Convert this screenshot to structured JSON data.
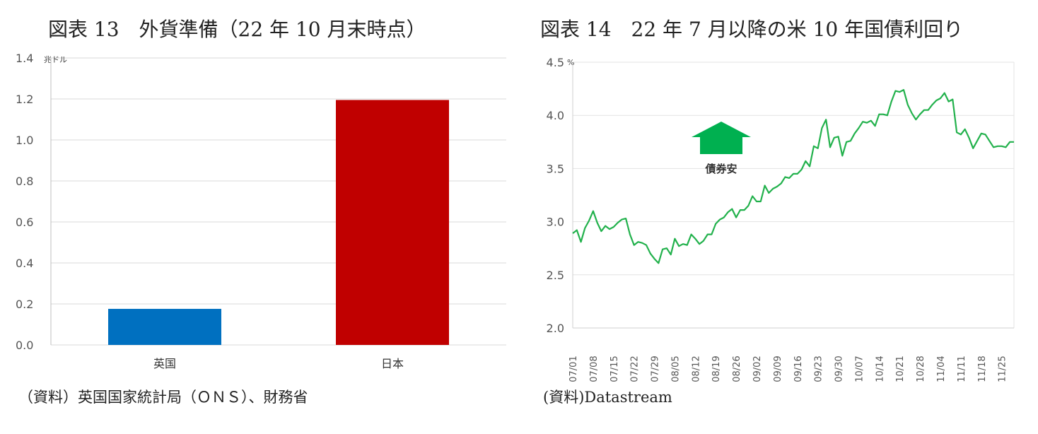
{
  "left": {
    "title": "図表 13　外貨準備（22 年 10 月末時点）",
    "source": "（資料）英国国家統計局（ＯＮＳ）、財務省"
  },
  "right": {
    "title": "図表 14　22 年 7 月以降の米 10 年国債利回り",
    "source": "(資料)Datastream"
  },
  "chart_data": [
    {
      "type": "bar",
      "title": "図表 13　外貨準備（22 年 10 月末時点）",
      "unit": "兆ドル",
      "categories": [
        "英国",
        "日本"
      ],
      "values": [
        0.176,
        1.195
      ],
      "colors": [
        "#0070c0",
        "#c00000"
      ],
      "ylim": [
        0,
        1.4
      ],
      "yticks": [
        "0.0",
        "0.2",
        "0.4",
        "0.6",
        "0.8",
        "1.0",
        "1.2",
        "1.4"
      ],
      "grid": true
    },
    {
      "type": "line",
      "title": "図表 14　22 年 7 月以降の米 10 年国債利回り",
      "unit": "%",
      "color": "#22b14c",
      "ylim": [
        2.0,
        4.5
      ],
      "yticks": [
        "2.0",
        "2.5",
        "3.0",
        "3.5",
        "4.0",
        "4.5"
      ],
      "xticks": [
        "07/01",
        "07/08",
        "07/15",
        "07/22",
        "07/29",
        "08/05",
        "08/12",
        "08/19",
        "08/26",
        "09/02",
        "09/09",
        "09/16",
        "09/23",
        "09/30",
        "10/07",
        "10/14",
        "10/21",
        "10/28",
        "11/04",
        "11/11",
        "11/18",
        "11/25"
      ],
      "annotation": {
        "label": "債券安",
        "icon": "up-arrow-icon",
        "color": "#00b050"
      },
      "x": [
        "07/01",
        "07/04",
        "07/05",
        "07/06",
        "07/07",
        "07/08",
        "07/11",
        "07/12",
        "07/13",
        "07/14",
        "07/15",
        "07/18",
        "07/19",
        "07/20",
        "07/21",
        "07/22",
        "07/25",
        "07/26",
        "07/27",
        "07/28",
        "07/29",
        "08/01",
        "08/02",
        "08/03",
        "08/04",
        "08/05",
        "08/08",
        "08/09",
        "08/10",
        "08/11",
        "08/12",
        "08/15",
        "08/16",
        "08/17",
        "08/18",
        "08/19",
        "08/22",
        "08/23",
        "08/24",
        "08/25",
        "08/26",
        "08/29",
        "08/30",
        "08/31",
        "09/01",
        "09/02",
        "09/05",
        "09/06",
        "09/07",
        "09/08",
        "09/09",
        "09/12",
        "09/13",
        "09/14",
        "09/15",
        "09/16",
        "09/19",
        "09/20",
        "09/21",
        "09/22",
        "09/23",
        "09/26",
        "09/27",
        "09/28",
        "09/29",
        "09/30",
        "10/03",
        "10/04",
        "10/05",
        "10/06",
        "10/07",
        "10/10",
        "10/11",
        "10/12",
        "10/13",
        "10/14",
        "10/17",
        "10/18",
        "10/19",
        "10/20",
        "10/21",
        "10/24",
        "10/25",
        "10/26",
        "10/27",
        "10/28",
        "10/31",
        "11/01",
        "11/02",
        "11/03",
        "11/04",
        "11/07",
        "11/08",
        "11/09",
        "11/10",
        "11/11",
        "11/14",
        "11/15",
        "11/16",
        "11/17",
        "11/18",
        "11/21",
        "11/22",
        "11/23",
        "11/24",
        "11/25",
        "11/28",
        "11/29",
        "11/30"
      ],
      "values": [
        2.89,
        2.92,
        2.81,
        2.94,
        3.01,
        3.1,
        2.99,
        2.91,
        2.96,
        2.93,
        2.95,
        2.99,
        3.02,
        3.03,
        2.88,
        2.78,
        2.81,
        2.8,
        2.78,
        2.7,
        2.65,
        2.61,
        2.74,
        2.75,
        2.69,
        2.84,
        2.77,
        2.79,
        2.78,
        2.88,
        2.84,
        2.79,
        2.82,
        2.88,
        2.88,
        2.98,
        3.02,
        3.04,
        3.09,
        3.12,
        3.04,
        3.11,
        3.11,
        3.15,
        3.24,
        3.19,
        3.19,
        3.34,
        3.27,
        3.31,
        3.33,
        3.36,
        3.42,
        3.41,
        3.45,
        3.45,
        3.49,
        3.57,
        3.52,
        3.71,
        3.69,
        3.88,
        3.96,
        3.7,
        3.79,
        3.8,
        3.62,
        3.75,
        3.76,
        3.83,
        3.88,
        3.94,
        3.93,
        3.95,
        3.9,
        4.01,
        4.01,
        4.0,
        4.13,
        4.23,
        4.22,
        4.24,
        4.1,
        4.02,
        3.96,
        4.01,
        4.05,
        4.05,
        4.1,
        4.14,
        4.16,
        4.21,
        4.13,
        4.15,
        3.84,
        3.82,
        3.87,
        3.79,
        3.69,
        3.76,
        3.83,
        3.82,
        3.76,
        3.7,
        3.71,
        3.71,
        3.7,
        3.75,
        3.75
      ]
    }
  ]
}
